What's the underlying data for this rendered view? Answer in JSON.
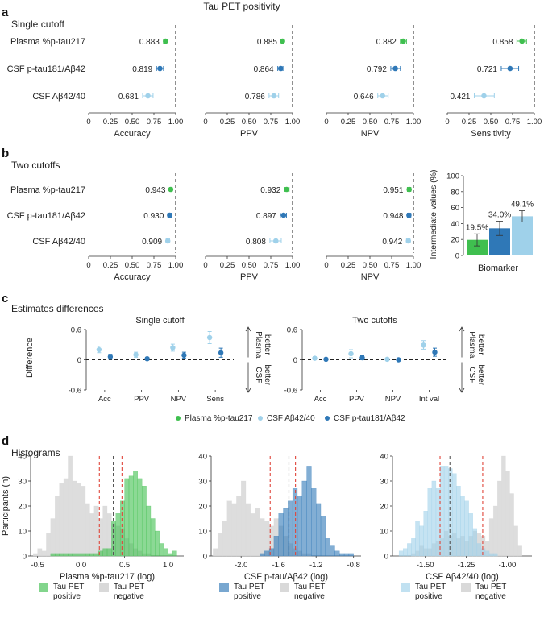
{
  "figure_title": "Tau PET positivity",
  "panel_letters": [
    "a",
    "b",
    "c",
    "d"
  ],
  "colors": {
    "plasma": "#3fbf4f",
    "csf_ratio": "#2f78b7",
    "csf_ab": "#9fd1ea",
    "grey_hist": "#d9d9d9",
    "red_dash": "#e0453a",
    "grey_dash": "#555555"
  },
  "biomarkers": [
    "Plasma %p-tau217",
    "CSF p-tau181/Aβ42",
    "CSF Aβ42/40"
  ],
  "axis_ticks": [
    "0",
    "0.25",
    "0.50",
    "0.75",
    "1.00"
  ],
  "chart_data": [
    {
      "type": "scatter",
      "id": "a",
      "section_title": "Single cutoff",
      "xlim": [
        0,
        1
      ],
      "reference_line": 1.0,
      "panels": [
        {
          "xlabel": "Accuracy",
          "values": [
            0.883,
            0.819,
            0.681
          ],
          "labels": [
            "0.883",
            "0.819",
            "0.681"
          ],
          "ci": [
            [
              0.86,
              0.91
            ],
            [
              0.78,
              0.86
            ],
            [
              0.62,
              0.74
            ]
          ]
        },
        {
          "xlabel": "PPV",
          "values": [
            0.885,
            0.864,
            0.786
          ],
          "labels": [
            "0.885",
            "0.864",
            "0.786"
          ],
          "ci": [
            [
              0.87,
              0.9
            ],
            [
              0.83,
              0.89
            ],
            [
              0.73,
              0.84
            ]
          ]
        },
        {
          "xlabel": "NPV",
          "values": [
            0.882,
            0.792,
            0.646
          ],
          "labels": [
            "0.882",
            "0.792",
            "0.646"
          ],
          "ci": [
            [
              0.85,
              0.92
            ],
            [
              0.74,
              0.85
            ],
            [
              0.59,
              0.71
            ]
          ]
        },
        {
          "xlabel": "Sensitivity",
          "values": [
            0.858,
            0.721,
            0.421
          ],
          "labels": [
            "0.858",
            "0.721",
            "0.421"
          ],
          "ci": [
            [
              0.8,
              0.91
            ],
            [
              0.62,
              0.82
            ],
            [
              0.31,
              0.54
            ]
          ]
        }
      ]
    },
    {
      "type": "scatter",
      "id": "b",
      "section_title": "Two cutoffs",
      "xlim": [
        0,
        1
      ],
      "reference_line": 1.0,
      "panels": [
        {
          "xlabel": "Accuracy",
          "values": [
            0.943,
            0.93,
            0.909
          ],
          "labels": [
            "0.943",
            "0.930",
            "0.909"
          ],
          "ci": [
            [
              0.93,
              0.96
            ],
            [
              0.91,
              0.95
            ],
            [
              0.89,
              0.93
            ]
          ]
        },
        {
          "xlabel": "PPV",
          "values": [
            0.932,
            0.897,
            0.808
          ],
          "labels": [
            "0.932",
            "0.897",
            "0.808"
          ],
          "ci": [
            [
              0.91,
              0.96
            ],
            [
              0.86,
              0.93
            ],
            [
              0.74,
              0.87
            ]
          ]
        },
        {
          "xlabel": "NPV",
          "values": [
            0.951,
            0.948,
            0.942
          ],
          "labels": [
            "0.951",
            "0.948",
            "0.942"
          ],
          "ci": [
            [
              0.93,
              0.97
            ],
            [
              0.93,
              0.97
            ],
            [
              0.92,
              0.96
            ]
          ]
        }
      ]
    },
    {
      "type": "bar",
      "id": "b-bars",
      "ylabel": "Intermediate values (%)",
      "xlabel": "Biomarker",
      "ylim": [
        0,
        100
      ],
      "yticks": [
        "0",
        "20",
        "40",
        "60",
        "80",
        "100"
      ],
      "values": [
        19.5,
        34.0,
        49.1
      ],
      "labels": [
        "19.5%",
        "34.0%",
        "49.1%"
      ],
      "ci": [
        [
          12,
          27
        ],
        [
          25,
          43
        ],
        [
          42,
          56
        ]
      ]
    },
    {
      "type": "scatter",
      "id": "c",
      "section_title": "Estimates differences",
      "ylabel": "Difference",
      "ylim": [
        -0.6,
        0.6
      ],
      "yticks": [
        "0.6",
        "0",
        "-0.6"
      ],
      "side_top": "Plasma better",
      "side_bottom": "CSF better",
      "panels": [
        {
          "title": "Single cutoff",
          "categories": [
            "Acc",
            "PPV",
            "NPV",
            "Sens"
          ],
          "series": [
            {
              "name": "CSF Aβ42/40",
              "values": [
                0.2,
                0.1,
                0.24,
                0.44
              ],
              "ci": [
                [
                  0.14,
                  0.27
                ],
                [
                  0.05,
                  0.15
                ],
                [
                  0.17,
                  0.31
                ],
                [
                  0.32,
                  0.56
                ]
              ]
            },
            {
              "name": "CSF p-tau181/Aβ42",
              "values": [
                0.06,
                0.02,
                0.09,
                0.14
              ],
              "ci": [
                [
                  0.01,
                  0.11
                ],
                [
                  -0.01,
                  0.05
                ],
                [
                  0.03,
                  0.15
                ],
                [
                  0.05,
                  0.23
                ]
              ]
            }
          ]
        },
        {
          "title": "Two cutoffs",
          "categories": [
            "Acc",
            "PPV",
            "NPV",
            "Int val"
          ],
          "series": [
            {
              "name": "CSF Aβ42/40",
              "values": [
                0.03,
                0.12,
                0.01,
                0.29
              ],
              "ci": [
                [
                  0.0,
                  0.06
                ],
                [
                  0.04,
                  0.2
                ],
                [
                  -0.01,
                  0.03
                ],
                [
                  0.21,
                  0.38
                ]
              ]
            },
            {
              "name": "CSF p-tau181/Aβ42",
              "values": [
                0.01,
                0.04,
                0.0,
                0.15
              ],
              "ci": [
                [
                  -0.01,
                  0.03
                ],
                [
                  0.0,
                  0.08
                ],
                [
                  -0.01,
                  0.01
                ],
                [
                  0.07,
                  0.23
                ]
              ]
            }
          ]
        }
      ]
    },
    {
      "type": "bar",
      "id": "d",
      "section_title": "Histograms",
      "ylabel": "Participants (n)",
      "ylim": [
        0,
        40
      ],
      "yticks": [
        "0",
        "10",
        "20",
        "30",
        "40"
      ],
      "legend_labels": [
        "Tau PET positive",
        "Tau PET negative"
      ],
      "panels": [
        {
          "xlabel": "Plasma %p-tau217 (log)",
          "xlim": [
            -0.58,
            1.18
          ],
          "xticks": [
            -0.5,
            0.0,
            0.5,
            1.0
          ],
          "xtick_labels": [
            "-0.5",
            "0.0",
            "0.5",
            "1.0"
          ],
          "bin_start": -0.55,
          "bin_width": 0.05,
          "negative": [
            1,
            3,
            2,
            9,
            15,
            24,
            29,
            31,
            40,
            30,
            29,
            28,
            21,
            17,
            20,
            15,
            20,
            17,
            13,
            12,
            11,
            7,
            5,
            3,
            2,
            1,
            1,
            0,
            0,
            0,
            0,
            0,
            0
          ],
          "positive": [
            0,
            0,
            0,
            0,
            1,
            1,
            1,
            1,
            1,
            1,
            1,
            1,
            1,
            1,
            1,
            2,
            3,
            3,
            14,
            17,
            22,
            31,
            32,
            34,
            31,
            28,
            20,
            15,
            10,
            5,
            3,
            1,
            2
          ],
          "dashes": [
            0.21,
            0.37,
            0.47
          ]
        },
        {
          "xlabel": "CSF p-tau/Aβ42 (log)",
          "xlim": [
            -2.32,
            -0.72
          ],
          "xticks": [
            -2.0,
            -1.6,
            -1.2,
            -0.8
          ],
          "xtick_labels": [
            "-2.0",
            "-1.6",
            "-1.2",
            "-0.8"
          ],
          "bin_start": -2.3,
          "bin_width": 0.05,
          "negative": [
            3,
            9,
            14,
            22,
            21,
            24,
            30,
            21,
            17,
            19,
            15,
            14,
            12,
            15,
            12,
            8,
            5,
            3,
            2,
            1,
            1,
            0,
            0,
            0,
            0,
            0,
            0,
            0,
            0,
            0,
            0
          ],
          "positive": [
            0,
            0,
            0,
            0,
            0,
            0,
            0,
            0,
            0,
            0,
            1,
            2,
            3,
            8,
            17,
            19,
            22,
            27,
            24,
            30,
            36,
            27,
            21,
            16,
            7,
            4,
            2,
            1,
            1,
            1,
            0
          ],
          "dashes": [
            -1.69,
            -1.49,
            -1.42
          ]
        },
        {
          "xlabel": "CSF Aβ42/40 (log)",
          "xlim": [
            -1.7,
            -0.85
          ],
          "xticks": [
            -1.5,
            -1.25,
            -1.0
          ],
          "xtick_labels": [
            "-1.50",
            "-1.25",
            "-1.00"
          ],
          "bin_start": -1.66,
          "bin_width": 0.025,
          "negative": [
            0,
            0,
            0,
            1,
            2,
            4,
            3,
            3,
            5,
            6,
            7,
            10,
            8,
            9,
            7,
            8,
            6,
            8,
            10,
            9,
            8,
            6,
            15,
            20,
            30,
            40,
            34,
            25,
            12,
            4
          ],
          "positive": [
            2,
            3,
            5,
            7,
            14,
            12,
            18,
            27,
            30,
            27,
            36,
            36,
            35,
            33,
            28,
            24,
            22,
            17,
            11,
            5,
            3,
            2,
            1,
            1,
            0,
            0,
            0,
            0,
            0,
            0
          ],
          "dashes": [
            -1.41,
            -1.35,
            -1.15
          ]
        }
      ]
    }
  ]
}
